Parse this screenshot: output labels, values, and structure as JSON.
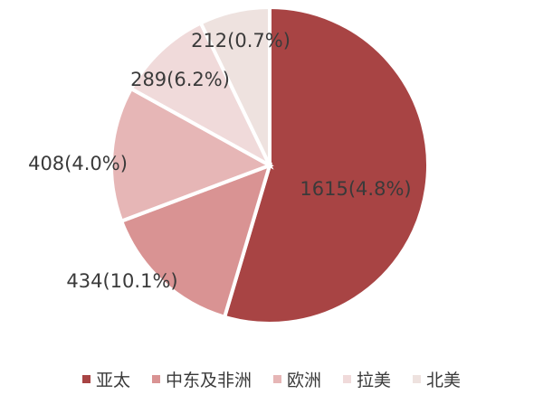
{
  "chart_data": {
    "type": "pie",
    "title": "",
    "slices": [
      {
        "category": "亚太",
        "value": 1615,
        "label": "1615(4.8%)",
        "color": "#a84444"
      },
      {
        "category": "中东及非洲",
        "value": 434,
        "label": "434(10.1%)",
        "color": "#d99393"
      },
      {
        "category": "欧洲",
        "value": 408,
        "label": "408(4.0%)",
        "color": "#e6b6b6"
      },
      {
        "category": "拉美",
        "value": 289,
        "label": "289(6.2%)",
        "color": "#f0dada"
      },
      {
        "category": "北美",
        "value": 212,
        "label": "212(0.7%)",
        "color": "#eee2df"
      }
    ],
    "legend_position": "bottom",
    "start_angle_deg": 0,
    "direction": "clockwise"
  }
}
